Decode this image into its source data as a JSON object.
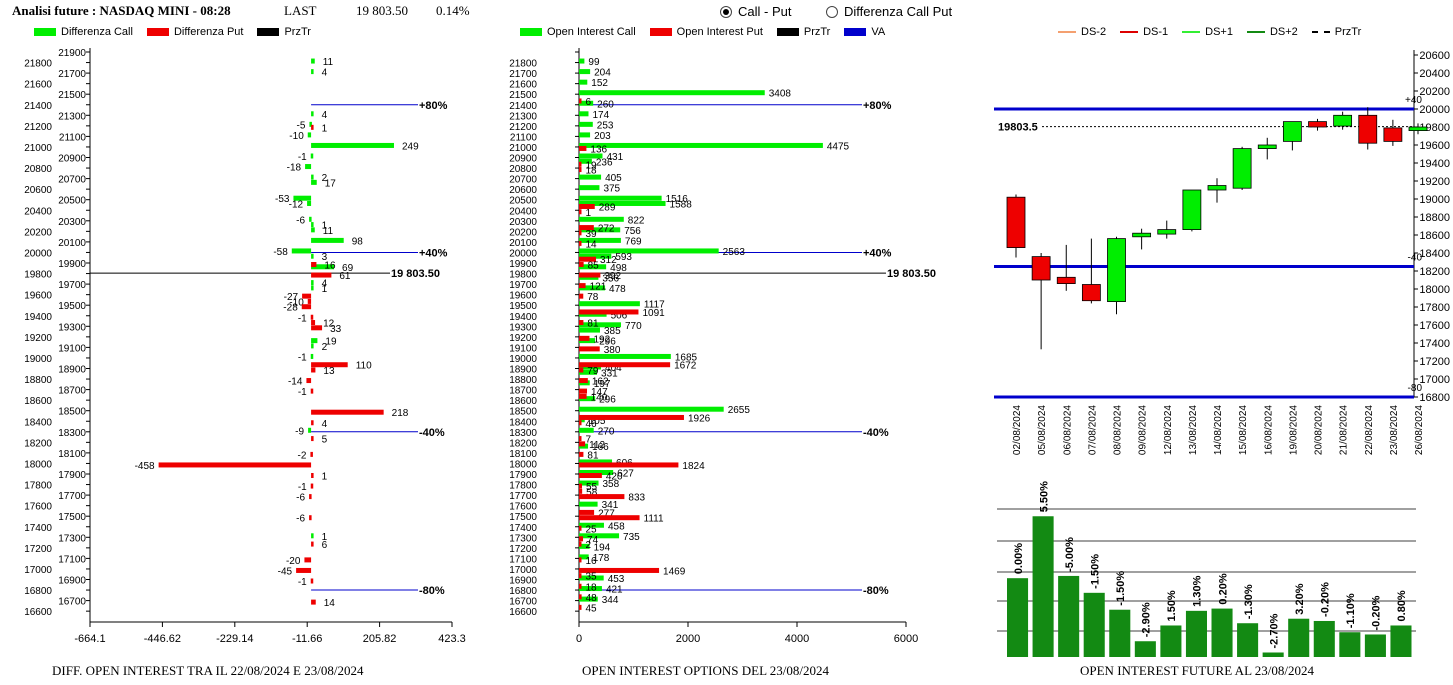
{
  "header": {
    "title": "Analisi future : NASDAQ MINI - 08:28",
    "last_label": "LAST",
    "last_value": "19 803.50",
    "change": "0.14%"
  },
  "radio": {
    "options": [
      "Call - Put",
      "Differenza Call Put"
    ],
    "selected": 0
  },
  "colors": {
    "call": "#00ee00",
    "put": "#ee0000",
    "va": "#0000cc",
    "blue": "#0000cc",
    "dark_green": "#138a13"
  },
  "chart_data": [
    {
      "id": "diff",
      "type": "bar",
      "orientation": "horizontal",
      "title": "DIFF. OPEN INTEREST TRA IL 22/08/2024 E 23/08/2024",
      "legend": [
        "Differenza Call",
        "Differenza Put",
        "PrzTr"
      ],
      "strikes": [
        21900,
        21800,
        21700,
        21600,
        21500,
        21400,
        21300,
        21200,
        21100,
        21000,
        20900,
        20800,
        20700,
        20600,
        20500,
        20400,
        20300,
        20200,
        20100,
        20000,
        19900,
        19800,
        19700,
        19600,
        19500,
        19400,
        19300,
        19200,
        19100,
        19000,
        18900,
        18800,
        18700,
        18600,
        18500,
        18400,
        18300,
        18200,
        18100,
        18000,
        17900,
        17800,
        17700,
        17600,
        17500,
        17400,
        17300,
        17200,
        17100,
        17000,
        16900,
        16800,
        16700,
        16600
      ],
      "y_tick_labels": [
        21800,
        21600,
        21400,
        21200,
        21000,
        20800,
        20600,
        20400,
        20200,
        20000,
        19800,
        19600,
        19400,
        19200,
        19000,
        18800,
        18600,
        18400,
        18200,
        18000,
        17800,
        17600,
        17400,
        17200,
        17000,
        16800,
        16600
      ],
      "x_ticks": [
        "-664.1",
        "-446.62",
        "-229.14",
        "-11.66",
        "205.82",
        "423.3"
      ],
      "xlim": [
        -664.1,
        423.3
      ],
      "call_bars": [
        {
          "strike": 21800,
          "value": 11
        },
        {
          "strike": 21700,
          "value": 4
        },
        {
          "strike": 21300,
          "value": 4
        },
        {
          "strike": 21200,
          "value": -5
        },
        {
          "strike": 21100,
          "value": -10
        },
        {
          "strike": 21000,
          "value": 249
        },
        {
          "strike": 20900,
          "value": -1
        },
        {
          "strike": 20800,
          "value": -18
        },
        {
          "strike": 20700,
          "value": 2
        },
        {
          "strike": 20650,
          "value": 17
        },
        {
          "strike": 20500,
          "value": -53
        },
        {
          "strike": 20450,
          "value": -12
        },
        {
          "strike": 20300,
          "value": -6
        },
        {
          "strike": 20250,
          "value": 1
        },
        {
          "strike": 20200,
          "value": 11
        },
        {
          "strike": 20100,
          "value": 98
        },
        {
          "strike": 20000,
          "value": -58
        },
        {
          "strike": 19950,
          "value": 3
        },
        {
          "strike": 19850,
          "value": 69
        },
        {
          "strike": 19700,
          "value": 4
        },
        {
          "strike": 19650,
          "value": 1
        },
        {
          "strike": 19150,
          "value": 19
        },
        {
          "strike": 19100,
          "value": 2
        },
        {
          "strike": 19000,
          "value": -1
        },
        {
          "strike": 18300,
          "value": -9
        },
        {
          "strike": 17300,
          "value": 1
        }
      ],
      "put_bars": [
        {
          "strike": 21200,
          "value": 1
        },
        {
          "strike": 19900,
          "value": 16
        },
        {
          "strike": 19800,
          "value": 61
        },
        {
          "strike": 19600,
          "value": -27
        },
        {
          "strike": 19550,
          "value": -10
        },
        {
          "strike": 19500,
          "value": -28
        },
        {
          "strike": 19400,
          "value": -1
        },
        {
          "strike": 19350,
          "value": 12
        },
        {
          "strike": 19300,
          "value": 33
        },
        {
          "strike": 18950,
          "value": 110
        },
        {
          "strike": 18900,
          "value": 13
        },
        {
          "strike": 18800,
          "value": -14
        },
        {
          "strike": 18700,
          "value": -1
        },
        {
          "strike": 18500,
          "value": 218
        },
        {
          "strike": 18400,
          "value": 4
        },
        {
          "strike": 18250,
          "value": 5
        },
        {
          "strike": 18100,
          "value": -2
        },
        {
          "strike": 18000,
          "value": -458
        },
        {
          "strike": 17900,
          "value": 1
        },
        {
          "strike": 17800,
          "value": -1
        },
        {
          "strike": 17700,
          "value": -6
        },
        {
          "strike": 17500,
          "value": -6
        },
        {
          "strike": 17250,
          "value": 6
        },
        {
          "strike": 17100,
          "value": -20
        },
        {
          "strike": 17000,
          "value": -45
        },
        {
          "strike": 16900,
          "value": -1
        },
        {
          "strike": 16700,
          "value": 14
        }
      ],
      "levels": [
        {
          "strike": 21400,
          "label": "+80%"
        },
        {
          "strike": 20000,
          "label": "+40%"
        },
        {
          "strike": 18300,
          "label": "-40%"
        },
        {
          "strike": 16800,
          "label": "-80%"
        }
      ],
      "price_line": {
        "strike": 19803.5,
        "label": "19 803.50"
      }
    },
    {
      "id": "oi",
      "type": "bar",
      "orientation": "horizontal",
      "title": "OPEN INTEREST OPTIONS DEL 23/08/2024",
      "legend": [
        "Open Interest Call",
        "Open Interest Put",
        "PrzTr",
        "VA"
      ],
      "strikes": [
        21900,
        21800,
        21700,
        21600,
        21500,
        21400,
        21300,
        21200,
        21100,
        21000,
        20900,
        20800,
        20700,
        20600,
        20500,
        20400,
        20300,
        20200,
        20100,
        20000,
        19900,
        19800,
        19700,
        19600,
        19500,
        19400,
        19300,
        19200,
        19100,
        19000,
        18900,
        18800,
        18700,
        18600,
        18500,
        18400,
        18300,
        18200,
        18100,
        18000,
        17900,
        17800,
        17700,
        17600,
        17500,
        17400,
        17300,
        17200,
        17100,
        17000,
        16900,
        16800,
        16700,
        16600
      ],
      "y_tick_labels": [
        21800,
        21700,
        21600,
        21500,
        21400,
        21300,
        21200,
        21100,
        21000,
        20900,
        20800,
        20700,
        20600,
        20500,
        20400,
        20300,
        20200,
        20100,
        20000,
        19900,
        19800,
        19700,
        19600,
        19500,
        19400,
        19300,
        19200,
        19100,
        19000,
        18900,
        18800,
        18700,
        18600,
        18500,
        18400,
        18300,
        18200,
        18100,
        18000,
        17900,
        17800,
        17700,
        17600,
        17500,
        17400,
        17300,
        17200,
        17100,
        17000,
        16900,
        16800,
        16700,
        16600
      ],
      "x_ticks": [
        "0",
        "2000",
        "4000",
        "6000"
      ],
      "xlim": [
        0,
        6000
      ],
      "call_bars": [
        {
          "strike": 21800,
          "value": 99
        },
        {
          "strike": 21700,
          "value": 204
        },
        {
          "strike": 21600,
          "value": 152
        },
        {
          "strike": 21500,
          "value": 3408
        },
        {
          "strike": 21400,
          "value": 260
        },
        {
          "strike": 21300,
          "value": 174
        },
        {
          "strike": 21200,
          "value": 253
        },
        {
          "strike": 21100,
          "value": 203
        },
        {
          "strike": 21000,
          "value": 4475
        },
        {
          "strike": 20900,
          "value": 431
        },
        {
          "strike": 20850,
          "value": 236
        },
        {
          "strike": 20700,
          "value": 405
        },
        {
          "strike": 20600,
          "value": 375
        },
        {
          "strike": 20500,
          "value": 1516
        },
        {
          "strike": 20450,
          "value": 1588
        },
        {
          "strike": 20300,
          "value": 822
        },
        {
          "strike": 20200,
          "value": 756
        },
        {
          "strike": 20100,
          "value": 769
        },
        {
          "strike": 20000,
          "value": 2563
        },
        {
          "strike": 19950,
          "value": 593
        },
        {
          "strike": 19850,
          "value": 498
        },
        {
          "strike": 19750,
          "value": 356
        },
        {
          "strike": 19650,
          "value": 478
        },
        {
          "strike": 19500,
          "value": 1117
        },
        {
          "strike": 19400,
          "value": 506
        },
        {
          "strike": 19300,
          "value": 770
        },
        {
          "strike": 19250,
          "value": 385
        },
        {
          "strike": 19150,
          "value": 296
        },
        {
          "strike": 19000,
          "value": 1685
        },
        {
          "strike": 18900,
          "value": 404
        },
        {
          "strike": 18850,
          "value": 331
        },
        {
          "strike": 18750,
          "value": 197
        },
        {
          "strike": 18600,
          "value": 296
        },
        {
          "strike": 18500,
          "value": 2655
        },
        {
          "strike": 18400,
          "value": 105
        },
        {
          "strike": 18300,
          "value": 270
        },
        {
          "strike": 18150,
          "value": 166
        },
        {
          "strike": 18000,
          "value": 606
        },
        {
          "strike": 17900,
          "value": 627
        },
        {
          "strike": 17800,
          "value": 358
        },
        {
          "strike": 17600,
          "value": 341
        },
        {
          "strike": 17400,
          "value": 458
        },
        {
          "strike": 17300,
          "value": 735
        },
        {
          "strike": 17200,
          "value": 194
        },
        {
          "strike": 17100,
          "value": 178
        },
        {
          "strike": 16900,
          "value": 453
        },
        {
          "strike": 16800,
          "value": 421
        },
        {
          "strike": 16700,
          "value": 344
        }
      ],
      "put_bars": [
        {
          "strike": 21450,
          "value": 6
        },
        {
          "strike": 21000,
          "value": 136
        },
        {
          "strike": 20850,
          "value": 19
        },
        {
          "strike": 20800,
          "value": 18
        },
        {
          "strike": 20450,
          "value": 289
        },
        {
          "strike": 20400,
          "value": 1
        },
        {
          "strike": 20250,
          "value": 272
        },
        {
          "strike": 20200,
          "value": 39
        },
        {
          "strike": 20100,
          "value": 14
        },
        {
          "strike": 19950,
          "value": 312
        },
        {
          "strike": 19900,
          "value": 85
        },
        {
          "strike": 19800,
          "value": 392
        },
        {
          "strike": 19700,
          "value": 121
        },
        {
          "strike": 19600,
          "value": 78
        },
        {
          "strike": 19450,
          "value": 1091
        },
        {
          "strike": 19350,
          "value": 81
        },
        {
          "strike": 19200,
          "value": 192
        },
        {
          "strike": 19100,
          "value": 380
        },
        {
          "strike": 18950,
          "value": 1672
        },
        {
          "strike": 18900,
          "value": 79
        },
        {
          "strike": 18800,
          "value": 162
        },
        {
          "strike": 18700,
          "value": 147
        },
        {
          "strike": 18650,
          "value": 140
        },
        {
          "strike": 18450,
          "value": 1926
        },
        {
          "strike": 18400,
          "value": 46
        },
        {
          "strike": 18250,
          "value": 7
        },
        {
          "strike": 18200,
          "value": 112
        },
        {
          "strike": 18100,
          "value": 81
        },
        {
          "strike": 18000,
          "value": 1824
        },
        {
          "strike": 17900,
          "value": 420
        },
        {
          "strike": 17800,
          "value": 55
        },
        {
          "strike": 17750,
          "value": 58
        },
        {
          "strike": 17700,
          "value": 833
        },
        {
          "strike": 17550,
          "value": 277
        },
        {
          "strike": 17500,
          "value": 1111
        },
        {
          "strike": 17400,
          "value": 25
        },
        {
          "strike": 17300,
          "value": 74
        },
        {
          "strike": 17250,
          "value": 2
        },
        {
          "strike": 17100,
          "value": 16
        },
        {
          "strike": 17000,
          "value": 1469
        },
        {
          "strike": 16950,
          "value": 35
        },
        {
          "strike": 16850,
          "value": 18
        },
        {
          "strike": 16750,
          "value": 48
        },
        {
          "strike": 16650,
          "value": 45
        }
      ],
      "levels": [
        {
          "strike": 21400,
          "label": "+80%"
        },
        {
          "strike": 20000,
          "label": "+40%"
        },
        {
          "strike": 18300,
          "label": "-40%"
        },
        {
          "strike": 16800,
          "label": "-80%"
        }
      ],
      "price_line": {
        "strike": 19803.5,
        "label": "19 803.50"
      }
    },
    {
      "id": "candles",
      "type": "candlestick",
      "legend": [
        "DS-2",
        "DS-1",
        "DS+1",
        "DS+2",
        "PrzTr"
      ],
      "ylim": [
        16800,
        20600
      ],
      "y_ticks": [
        20600,
        20400,
        20200,
        20000,
        19800,
        19600,
        19400,
        19200,
        19000,
        18800,
        18600,
        18400,
        18200,
        18000,
        17800,
        17600,
        17400,
        17200,
        17000,
        16800
      ],
      "price_label": "19803.5",
      "price": 19803.5,
      "bands": [
        {
          "value": 20000,
          "label": "+40"
        },
        {
          "value": 18250,
          "label": "-40"
        },
        {
          "value": 16800,
          "label": "-80"
        }
      ],
      "candles": [
        {
          "date": "02/08/2024",
          "open": 19020,
          "high": 19050,
          "low": 18350,
          "close": 18460
        },
        {
          "date": "05/08/2024",
          "open": 18360,
          "high": 18400,
          "low": 17330,
          "close": 18100
        },
        {
          "date": "06/08/2024",
          "open": 18130,
          "high": 18490,
          "low": 17980,
          "close": 18060
        },
        {
          "date": "07/08/2024",
          "open": 18050,
          "high": 18560,
          "low": 17840,
          "close": 17870
        },
        {
          "date": "08/08/2024",
          "open": 17860,
          "high": 18580,
          "low": 17720,
          "close": 18560
        },
        {
          "date": "09/08/2024",
          "open": 18580,
          "high": 18670,
          "low": 18440,
          "close": 18620
        },
        {
          "date": "12/08/2024",
          "open": 18610,
          "high": 18760,
          "low": 18560,
          "close": 18660
        },
        {
          "date": "13/08/2024",
          "open": 18660,
          "high": 19100,
          "low": 18640,
          "close": 19100
        },
        {
          "date": "14/08/2024",
          "open": 19100,
          "high": 19230,
          "low": 18960,
          "close": 19150
        },
        {
          "date": "15/08/2024",
          "open": 19120,
          "high": 19580,
          "low": 19100,
          "close": 19560
        },
        {
          "date": "16/08/2024",
          "open": 19560,
          "high": 19680,
          "low": 19440,
          "close": 19600
        },
        {
          "date": "19/08/2024",
          "open": 19640,
          "high": 19850,
          "low": 19540,
          "close": 19860
        },
        {
          "date": "20/08/2024",
          "open": 19860,
          "high": 19890,
          "low": 19760,
          "close": 19800
        },
        {
          "date": "21/08/2024",
          "open": 19810,
          "high": 19970,
          "low": 19770,
          "close": 19930
        },
        {
          "date": "22/08/2024",
          "open": 19930,
          "high": 20020,
          "low": 19550,
          "close": 19620
        },
        {
          "date": "23/08/2024",
          "open": 19790,
          "high": 19880,
          "low": 19590,
          "close": 19640
        },
        {
          "date": "26/08/2024",
          "open": 19760,
          "high": 19840,
          "low": 19720,
          "close": 19800
        }
      ]
    },
    {
      "id": "future_oi",
      "type": "bar",
      "title": "OPEN INTEREST FUTURE AL 23/08/2024",
      "labels": [
        "0.00%",
        "5.50%",
        "-5.00%",
        "-1.50%",
        "-1.50%",
        "-2.90%",
        "1.50%",
        "1.30%",
        "0.20%",
        "-1.30%",
        "-2.70%",
        "3.20%",
        "-0.20%",
        "-1.10%",
        "-0.20%",
        "0.80%"
      ],
      "values": [
        100,
        105.5,
        100.2,
        98.7,
        97.2,
        94.4,
        95.8,
        97.1,
        97.3,
        96.0,
        93.4,
        96.4,
        96.2,
        95.2,
        95.0,
        95.8
      ],
      "ylim": [
        93,
        106.5
      ]
    }
  ]
}
